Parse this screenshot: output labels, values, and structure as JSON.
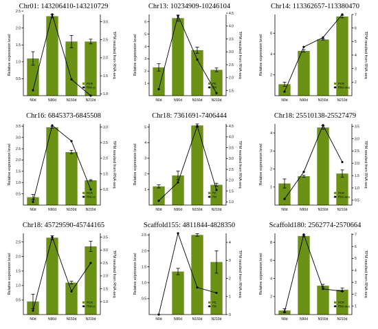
{
  "colors": {
    "bar": "#6b9215",
    "line": "#000000",
    "axis": "#000000"
  },
  "categories": [
    "N0d",
    "N90d",
    "N150d",
    "N210d"
  ],
  "ylabel_left": "Relative expression level",
  "ylabel_right": "TPM resulted from RNA-seq",
  "chart_data": [
    {
      "type": "bar",
      "title": "Chr01: 143206410-143210729",
      "categories": [
        "N0d",
        "N90d",
        "N150d",
        "N210d"
      ],
      "series": [
        {
          "name": "PCR",
          "values": [
            1.1,
            2.35,
            1.6,
            1.6
          ],
          "errors": [
            0.2,
            0.05,
            0.18,
            0.07
          ]
        },
        {
          "name": "RNA-s",
          "values": [
            1.1,
            3.2,
            1.4,
            0.95
          ],
          "axis": "right"
        }
      ],
      "ylim": [
        0,
        2.4
      ],
      "yticks": [
        "0.5",
        "1.0",
        "1.5",
        "2.0",
        "2.5"
      ],
      "ytick_vals": [
        0.5,
        1.0,
        1.5,
        2.0,
        2.5
      ],
      "y2lim": [
        0.95,
        3.2
      ],
      "y2ticks": [
        "1.0",
        "1.5",
        "2.0",
        "2.5",
        "3.0"
      ],
      "y2tick_vals": [
        1.0,
        1.5,
        2.0,
        2.5,
        3.0
      ],
      "legend": [
        "PCR",
        "RNA-s"
      ]
    },
    {
      "type": "bar",
      "title": "Chr13: 10234909-10246104",
      "categories": [
        "N0d",
        "N90d",
        "N150d",
        "N210d"
      ],
      "series": [
        {
          "name": "PC",
          "values": [
            2.3,
            6.3,
            3.7,
            2.1
          ],
          "errors": [
            0.3,
            0.25,
            0.25,
            0.15
          ]
        },
        {
          "name": "RN",
          "values": [
            1.55,
            4.4,
            2.7,
            1.4
          ],
          "axis": "right"
        }
      ],
      "ylim": [
        0,
        6.6
      ],
      "yticks": [
        "1",
        "2",
        "3",
        "4",
        "5",
        "6"
      ],
      "ytick_vals": [
        1,
        2,
        3,
        4,
        5,
        6
      ],
      "y2lim": [
        1.3,
        4.45
      ],
      "y2ticks": [
        "1.5",
        "2.0",
        "2.5",
        "3.0",
        "3.5",
        "4.0",
        "4.5"
      ],
      "y2tick_vals": [
        1.5,
        2.0,
        2.5,
        3.0,
        3.5,
        4.0,
        4.5
      ],
      "legend": [
        "PC",
        "RN"
      ]
    },
    {
      "type": "bar",
      "title": "Chr14: 113362657-113380470",
      "categories": [
        "N0d",
        "N90d",
        "N150d",
        "N210d"
      ],
      "series": [
        {
          "name": "PCR",
          "values": [
            1.1,
            4.3,
            5.4,
            7.6
          ],
          "errors": [
            0.2,
            0.12,
            0.06,
            0.12
          ]
        },
        {
          "name": "RNA-seq",
          "values": [
            1.3,
            4.6,
            5.3,
            7.0
          ],
          "axis": "right"
        }
      ],
      "ylim": [
        0,
        7.8
      ],
      "yticks": [
        "2",
        "4",
        "6"
      ],
      "ytick_vals": [
        2,
        4,
        6
      ],
      "y2lim": [
        1.0,
        7.0
      ],
      "y2ticks": [
        "2",
        "3",
        "4",
        "5",
        "6",
        "7"
      ],
      "y2tick_vals": [
        2,
        3,
        4,
        5,
        6,
        7
      ],
      "legend": [
        "PCR",
        "RNA-seq"
      ]
    },
    {
      "type": "bar",
      "title": "Chr16: 6845373-6845508",
      "categories": [
        "N0d",
        "N90d",
        "N150d",
        "N210d"
      ],
      "series": [
        {
          "name": "PCR",
          "values": [
            0.35,
            3.45,
            2.35,
            1.1
          ],
          "errors": [
            0.12,
            0.04,
            0.08,
            0.03
          ]
        },
        {
          "name": "RNA-s",
          "values": [
            0.6,
            3.05,
            2.55,
            1.0
          ],
          "axis": "right"
        }
      ],
      "ylim": [
        0,
        3.6
      ],
      "yticks": [
        "0.5",
        "1.0",
        "1.5",
        "2.0",
        "2.5",
        "3.0",
        "3.5"
      ],
      "ytick_vals": [
        0.5,
        1.0,
        1.5,
        2.0,
        2.5,
        3.0,
        3.5
      ],
      "y2lim": [
        0.5,
        3.1
      ],
      "y2ticks": [
        "1.0",
        "1.5",
        "2.0",
        "2.5",
        "3.0"
      ],
      "y2tick_vals": [
        1.0,
        1.5,
        2.0,
        2.5,
        3.0
      ],
      "legend": [
        "PCR",
        "RNA-s"
      ]
    },
    {
      "type": "bar",
      "title": "Chr18: 7361691-7406444",
      "categories": [
        "N0d",
        "N90d",
        "N150d",
        "N210d"
      ],
      "series": [
        {
          "name": "PC",
          "values": [
            1.2,
            1.9,
            5.1,
            1.3
          ],
          "errors": [
            0.1,
            0.28,
            0.1,
            0.1
          ]
        },
        {
          "name": "RN",
          "values": [
            1.05,
            1.9,
            4.5,
            1.55
          ],
          "axis": "right"
        }
      ],
      "ylim": [
        0,
        5.2
      ],
      "yticks": [
        "1",
        "2",
        "3",
        "4",
        "5"
      ],
      "ytick_vals": [
        1,
        2,
        3,
        4,
        5
      ],
      "y2lim": [
        0.85,
        4.6
      ],
      "y2ticks": [
        "1.0",
        "1.5",
        "2.0",
        "2.5",
        "3.0",
        "3.5",
        "4.0",
        "4.5"
      ],
      "y2tick_vals": [
        1.0,
        1.5,
        2.0,
        2.5,
        3.0,
        3.5,
        4.0,
        4.5
      ],
      "legend": [
        "PC",
        "RN"
      ]
    },
    {
      "type": "bar",
      "title": "Chr18: 25510138-25527479",
      "categories": [
        "N0d",
        "N90d",
        "N150d",
        "N210d"
      ],
      "series": [
        {
          "name": "PCR",
          "values": [
            1.2,
            1.6,
            4.3,
            1.75
          ],
          "errors": [
            0.25,
            0.05,
            0.1,
            0.2
          ]
        },
        {
          "name": "RNA-seq",
          "values": [
            0.55,
            1.65,
            3.55,
            2.05
          ],
          "axis": "right"
        }
      ],
      "ylim": [
        0,
        4.5
      ],
      "yticks": [
        "1",
        "2",
        "3",
        "4"
      ],
      "ytick_vals": [
        1,
        2,
        3,
        4
      ],
      "y2lim": [
        0.3,
        3.6
      ],
      "y2ticks": [
        "0.5",
        "1.0",
        "1.5",
        "2.0",
        "2.5",
        "3.0",
        "3.5"
      ],
      "y2tick_vals": [
        0.5,
        1.0,
        1.5,
        2.0,
        2.5,
        3.0,
        3.5
      ],
      "legend": [
        "PCR",
        "RNA-seq"
      ]
    },
    {
      "type": "bar",
      "title": "Chr18: 45729590-45744165",
      "categories": [
        "N0d",
        "N90d",
        "N150d",
        "N210d"
      ],
      "series": [
        {
          "name": "PCR",
          "values": [
            0.45,
            2.65,
            1.1,
            2.35
          ],
          "errors": [
            0.25,
            0.07,
            0.05,
            0.18
          ]
        },
        {
          "name": "RNA-s",
          "values": [
            0.65,
            3.5,
            1.4,
            2.5
          ],
          "axis": "right"
        }
      ],
      "ylim": [
        0,
        2.8
      ],
      "yticks": [
        "0.5",
        "1.0",
        "1.5",
        "2.0",
        "2.5"
      ],
      "ytick_vals": [
        0.5,
        1.0,
        1.5,
        2.0,
        2.5
      ],
      "y2lim": [
        0.5,
        3.65
      ],
      "y2ticks": [
        "1.0",
        "1.5",
        "2.0",
        "2.5",
        "3.0",
        "3.5"
      ],
      "y2tick_vals": [
        1.0,
        1.5,
        2.0,
        2.5,
        3.0,
        3.5
      ],
      "legend": [
        "PCR",
        "RNA-s"
      ]
    },
    {
      "type": "bar",
      "title": "Scaffold155: 4811844-4828350",
      "categories": [
        "N0d",
        "N90d",
        "N150d",
        "N210d"
      ],
      "series": [
        {
          "name": "PC",
          "values": [
            0.0,
            1.35,
            2.5,
            1.65
          ],
          "errors": [
            0.0,
            0.1,
            0.04,
            0.35
          ]
        },
        {
          "name": "RN",
          "values": [
            0.0,
            4.5,
            1.5,
            1.2
          ],
          "axis": "right"
        }
      ],
      "ylim": [
        0,
        2.55
      ],
      "yticks": [
        "0.5",
        "1.0",
        "1.5",
        "2.0",
        "2.5"
      ],
      "ytick_vals": [
        0.5,
        1.0,
        1.5,
        2.0,
        2.5
      ],
      "y2lim": [
        0.0,
        4.5
      ],
      "y2ticks": [
        "0",
        "1",
        "2",
        "3",
        "4"
      ],
      "y2tick_vals": [
        0,
        1,
        2,
        3,
        4
      ],
      "legend": [
        "PC",
        "RN"
      ]
    },
    {
      "type": "bar",
      "title": "Scaffold180: 2562774-2570664",
      "categories": [
        "N0d",
        "N90d",
        "N150d",
        "N210d"
      ],
      "series": [
        {
          "name": "PCR",
          "values": [
            0.45,
            8.7,
            3.2,
            2.75
          ],
          "errors": [
            0.2,
            0.08,
            0.15,
            0.2
          ]
        },
        {
          "name": "RNA-seq",
          "values": [
            0.5,
            7.0,
            2.45,
            2.25
          ],
          "axis": "right"
        }
      ],
      "ylim": [
        0,
        9.0
      ],
      "yticks": [
        "2",
        "4",
        "6",
        "8"
      ],
      "ytick_vals": [
        2,
        4,
        6,
        8
      ],
      "y2lim": [
        0.3,
        7.1
      ],
      "y2ticks": [
        "1",
        "2",
        "3",
        "4",
        "5",
        "6",
        "7"
      ],
      "y2tick_vals": [
        1,
        2,
        3,
        4,
        5,
        6,
        7
      ],
      "legend": [
        "PCR",
        "RNA-seq"
      ]
    }
  ]
}
